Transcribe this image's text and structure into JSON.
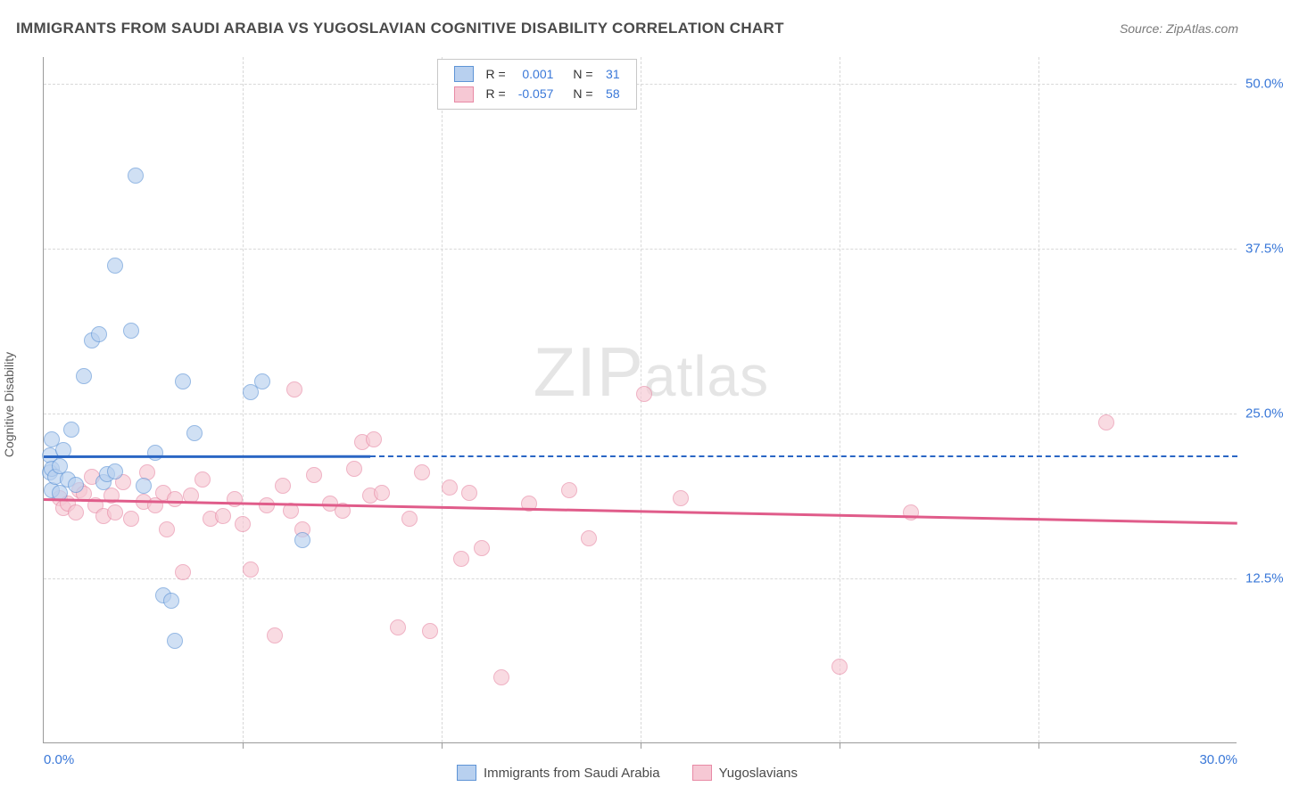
{
  "title": "IMMIGRANTS FROM SAUDI ARABIA VS YUGOSLAVIAN COGNITIVE DISABILITY CORRELATION CHART",
  "source": "Source: ZipAtlas.com",
  "ylabel": "Cognitive Disability",
  "watermark": "ZIPatlas",
  "chart": {
    "type": "scatter",
    "xlim": [
      0,
      30
    ],
    "ylim": [
      0,
      52
    ],
    "background_color": "#ffffff",
    "grid_color": "#d8d8d8",
    "axis_color": "#9a9a9a",
    "tick_color": "#3a78d8",
    "yticks": [
      {
        "v": 12.5,
        "l": "12.5%"
      },
      {
        "v": 25,
        "l": "25.0%"
      },
      {
        "v": 37.5,
        "l": "37.5%"
      },
      {
        "v": 50,
        "l": "50.0%"
      }
    ],
    "xticks_minor": [
      5,
      10,
      15,
      20,
      25
    ],
    "xtick_first": "0.0%",
    "xtick_last": "30.0%",
    "marker_radius": 9,
    "series": [
      {
        "name": "Immigrants from Saudi Arabia",
        "fill": "#b8d0ef",
        "stroke": "#5e94d6",
        "line_color": "#2a66c4",
        "R_label": "R =",
        "R": "0.001",
        "N_label": "N =",
        "N": "31",
        "trend": {
          "x0": 0,
          "y0": 21.8,
          "x1": 8.2,
          "y1": 21.82,
          "dash_from_x": 8.2
        },
        "points": [
          [
            0.15,
            20.5
          ],
          [
            0.15,
            21.8
          ],
          [
            0.2,
            19.2
          ],
          [
            0.2,
            20.8
          ],
          [
            0.2,
            23.0
          ],
          [
            0.3,
            20.2
          ],
          [
            0.4,
            19.0
          ],
          [
            0.4,
            21.0
          ],
          [
            0.5,
            22.2
          ],
          [
            0.6,
            20.0
          ],
          [
            0.7,
            23.8
          ],
          [
            0.8,
            19.6
          ],
          [
            1.0,
            27.8
          ],
          [
            1.2,
            30.5
          ],
          [
            1.4,
            31.0
          ],
          [
            1.5,
            19.8
          ],
          [
            1.6,
            20.4
          ],
          [
            1.8,
            20.6
          ],
          [
            1.8,
            36.2
          ],
          [
            2.2,
            31.3
          ],
          [
            2.3,
            43.0
          ],
          [
            2.5,
            19.5
          ],
          [
            2.8,
            22.0
          ],
          [
            3.0,
            11.2
          ],
          [
            3.2,
            10.8
          ],
          [
            3.3,
            7.8
          ],
          [
            3.5,
            27.4
          ],
          [
            3.8,
            23.5
          ],
          [
            5.2,
            26.6
          ],
          [
            5.5,
            27.4
          ],
          [
            6.5,
            15.4
          ]
        ]
      },
      {
        "name": "Yugoslavians",
        "fill": "#f6c8d4",
        "stroke": "#e88aa5",
        "line_color": "#e05c8a",
        "R_label": "R =",
        "R": "-0.057",
        "N_label": "N =",
        "N": "58",
        "trend": {
          "x0": 0,
          "y0": 18.6,
          "x1": 30,
          "y1": 16.8
        },
        "points": [
          [
            0.4,
            18.6
          ],
          [
            0.5,
            17.8
          ],
          [
            0.6,
            18.2
          ],
          [
            0.8,
            17.5
          ],
          [
            0.9,
            19.2
          ],
          [
            1.0,
            18.9
          ],
          [
            1.2,
            20.2
          ],
          [
            1.3,
            18.0
          ],
          [
            1.5,
            17.2
          ],
          [
            1.7,
            18.8
          ],
          [
            1.8,
            17.5
          ],
          [
            2.0,
            19.8
          ],
          [
            2.2,
            17.0
          ],
          [
            2.5,
            18.3
          ],
          [
            2.6,
            20.5
          ],
          [
            2.8,
            18.0
          ],
          [
            3.0,
            19.0
          ],
          [
            3.1,
            16.2
          ],
          [
            3.3,
            18.5
          ],
          [
            3.5,
            13.0
          ],
          [
            3.7,
            18.8
          ],
          [
            4.0,
            20.0
          ],
          [
            4.2,
            17.0
          ],
          [
            4.5,
            17.2
          ],
          [
            4.8,
            18.5
          ],
          [
            5.0,
            16.6
          ],
          [
            5.2,
            13.2
          ],
          [
            5.6,
            18.0
          ],
          [
            5.8,
            8.2
          ],
          [
            6.0,
            19.5
          ],
          [
            6.2,
            17.6
          ],
          [
            6.3,
            26.8
          ],
          [
            6.5,
            16.2
          ],
          [
            6.8,
            20.3
          ],
          [
            7.2,
            18.2
          ],
          [
            7.5,
            17.6
          ],
          [
            7.8,
            20.8
          ],
          [
            8.0,
            22.8
          ],
          [
            8.2,
            18.8
          ],
          [
            8.3,
            23.0
          ],
          [
            8.5,
            19.0
          ],
          [
            8.9,
            8.8
          ],
          [
            9.2,
            17.0
          ],
          [
            9.5,
            20.5
          ],
          [
            9.7,
            8.5
          ],
          [
            10.2,
            19.4
          ],
          [
            10.5,
            14.0
          ],
          [
            10.7,
            19.0
          ],
          [
            11.0,
            14.8
          ],
          [
            11.5,
            5.0
          ],
          [
            12.2,
            18.2
          ],
          [
            13.2,
            19.2
          ],
          [
            13.7,
            15.5
          ],
          [
            15.1,
            26.5
          ],
          [
            16.0,
            18.6
          ],
          [
            20.0,
            5.8
          ],
          [
            21.8,
            17.5
          ],
          [
            26.7,
            24.3
          ]
        ]
      }
    ]
  },
  "legend_bottom": [
    {
      "swatch_fill": "#b8d0ef",
      "swatch_stroke": "#5e94d6",
      "label": "Immigrants from Saudi Arabia"
    },
    {
      "swatch_fill": "#f6c8d4",
      "swatch_stroke": "#e88aa5",
      "label": "Yugoslavians"
    }
  ]
}
